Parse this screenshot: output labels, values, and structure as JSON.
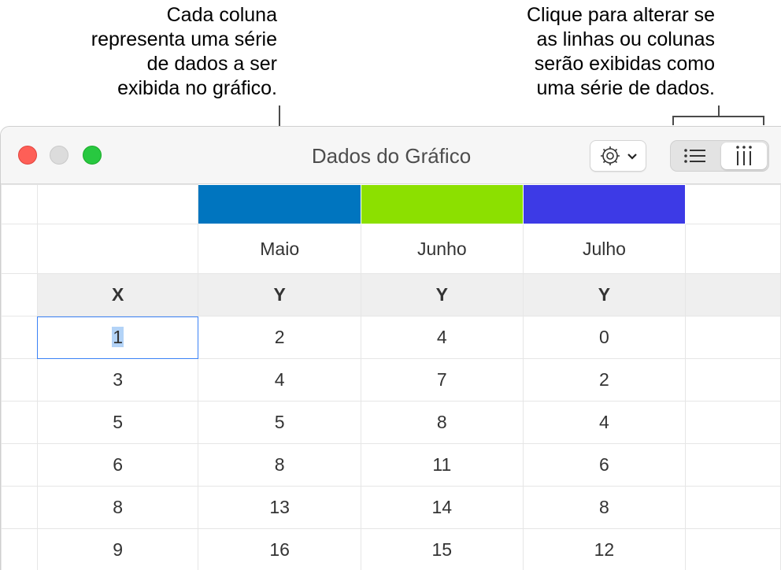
{
  "callouts": {
    "series_column": [
      "Cada coluna",
      "representa uma série",
      "de dados a ser",
      "exibida no gráfico."
    ],
    "toggle_series": [
      "Clique para alterar se",
      "as linhas ou colunas",
      "serão exibidas como",
      "uma série de dados."
    ]
  },
  "window": {
    "title": "Dados do Gráfico",
    "traffic_lights": [
      "close",
      "minimize",
      "maximize"
    ]
  },
  "toolbar": {
    "gear_menu_icon": "gear-icon",
    "series_toggle": [
      {
        "name": "rows-as-series",
        "icon": "list-icon",
        "selected": false
      },
      {
        "name": "columns-as-series",
        "icon": "columns-icon",
        "selected": true
      }
    ]
  },
  "table": {
    "series_colors": [
      "#0075bf",
      "#8ce000",
      "#3d3ae6"
    ],
    "series_names": [
      "Maio",
      "Junho",
      "Julho"
    ],
    "axis_headers": [
      "X",
      "Y",
      "Y",
      "Y"
    ],
    "rows": [
      [
        "1",
        "2",
        "4",
        "0"
      ],
      [
        "3",
        "4",
        "7",
        "2"
      ],
      [
        "5",
        "5",
        "8",
        "4"
      ],
      [
        "6",
        "8",
        "11",
        "6"
      ],
      [
        "8",
        "13",
        "14",
        "8"
      ],
      [
        "9",
        "16",
        "15",
        "12"
      ]
    ],
    "selected_cell": "1"
  }
}
